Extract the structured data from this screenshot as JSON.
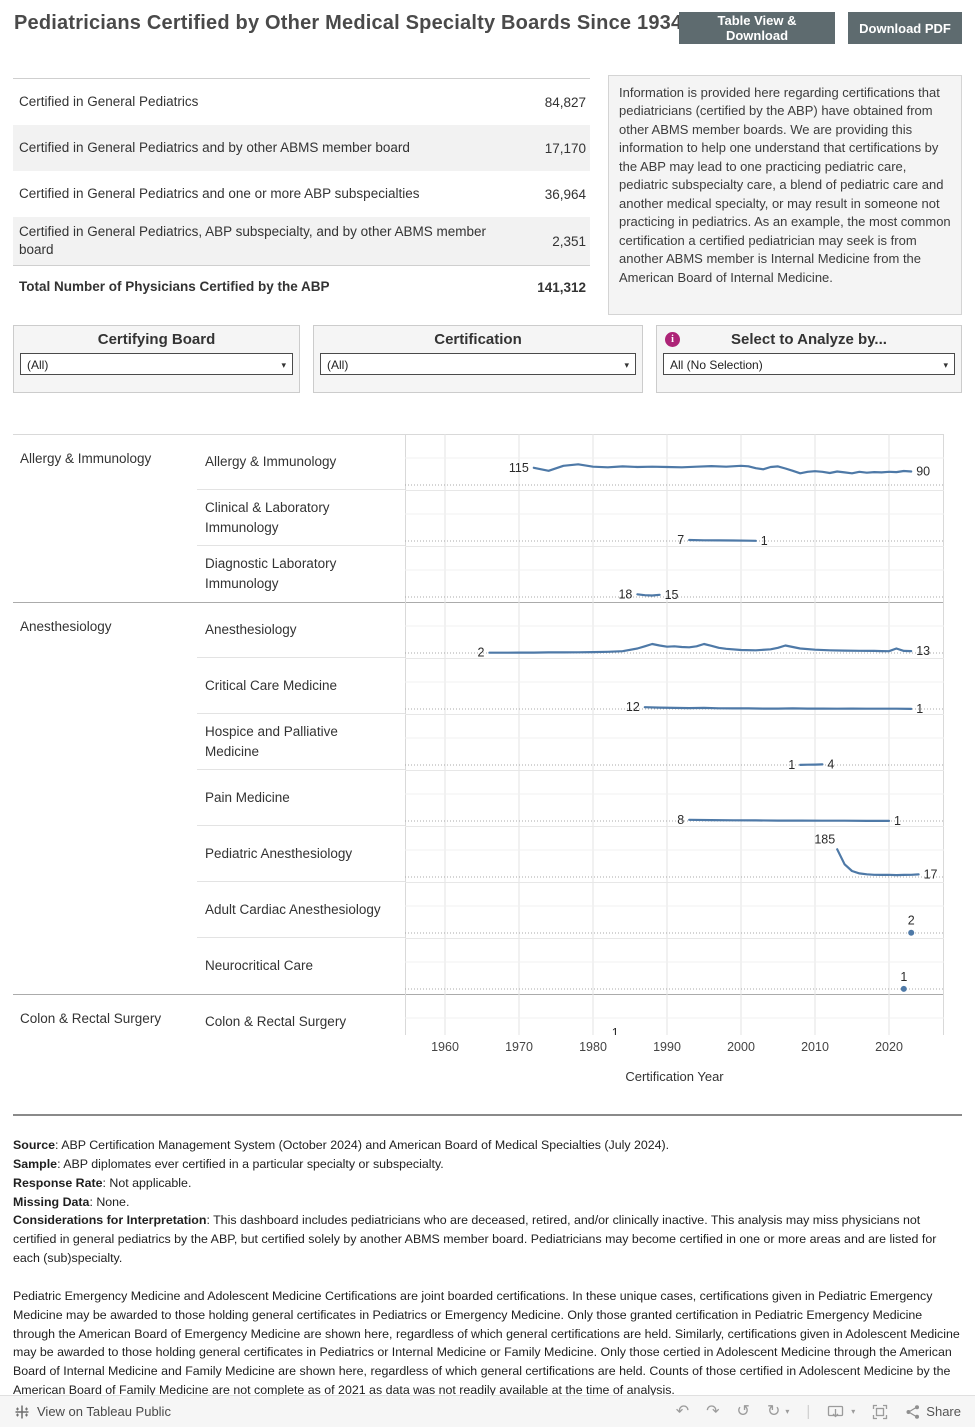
{
  "header": {
    "title": "Pediatricians Certified by Other Medical Specialty Boards Since 1934",
    "table_view_button": "Table View & Download",
    "download_pdf_button": "Download PDF"
  },
  "summary_table": {
    "rows": [
      {
        "label": "Certified in General Pediatrics",
        "value": "84,827",
        "bold": false
      },
      {
        "label": "Certified in General Pediatrics and by other ABMS member board",
        "value": "17,170",
        "bold": false
      },
      {
        "label": "Certified in General Pediatrics and one or more ABP subspecialties",
        "value": "36,964",
        "bold": false
      },
      {
        "label": "Certified in General Pediatrics, ABP subspecialty, and by other ABMS member board",
        "value": "2,351",
        "bold": false
      },
      {
        "label": "Total Number of Physicians Certified by the ABP",
        "value": "141,312",
        "bold": true
      }
    ]
  },
  "info_box": {
    "text": "Information is provided here regarding certifications that pediatricians (certified by the ABP) have obtained from other ABMS member boards.  We are providing this information to help one understand that certifications by the ABP may lead to one practicing pediatric care, pediatric subspecialty care, a blend of pediatric care and another medical specialty, or may result in someone not practicing in pediatrics.  As an example, the most common certification a certified pediatrician may seek is from another ABMS member is Internal Medicine from the American Board of Internal Medicine."
  },
  "filters": [
    {
      "title": "Certifying Board",
      "value": "(All)",
      "info_icon": false
    },
    {
      "title": "Certification",
      "value": "(All)",
      "info_icon": false
    },
    {
      "title": "Select to Analyze by...",
      "value": "All (No Selection)",
      "info_icon": true
    }
  ],
  "accent_colors": {
    "line_blue": "#4e79a7",
    "button_gray": "#5e6b6f",
    "info_icon_magenta": "#ad2477"
  },
  "chart_data": {
    "type": "line",
    "xlabel": "Certification Year",
    "x_ticks": [
      1960,
      1970,
      1980,
      1990,
      2000,
      2010,
      2020
    ],
    "xlim": [
      1955,
      2027
    ],
    "groups": [
      {
        "board": "Allergy & Immunology",
        "rows": [
          {
            "specialty": "Allergy & Immunology",
            "first_label": "115",
            "last_label": "90",
            "years": [
              1972,
              1973,
              1974,
              1976,
              1978,
              1980,
              1982,
              1984,
              1986,
              1988,
              1990,
              1992,
              1994,
              1996,
              1998,
              2000,
              2001,
              2002,
              2003,
              2004,
              2005,
              2006,
              2007,
              2008,
              2009,
              2010,
              2011,
              2012,
              2013,
              2014,
              2015,
              2016,
              2017,
              2018,
              2019,
              2020,
              2021,
              2022,
              2023
            ],
            "values": [
              115,
              105,
              95,
              128,
              138,
              122,
              118,
              124,
              120,
              122,
              120,
              118,
              122,
              126,
              122,
              128,
              125,
              112,
              105,
              120,
              124,
              110,
              95,
              78,
              88,
              92,
              88,
              80,
              90,
              84,
              78,
              88,
              82,
              86,
              84,
              88,
              86,
              93,
              90
            ]
          },
          {
            "specialty": "Clinical & Laboratory Immunology",
            "first_label": "7",
            "last_label": "1",
            "years": [
              1993,
              1995,
              1997,
              1999,
              2001,
              2002
            ],
            "values": [
              7,
              5,
              4,
              3,
              2,
              1
            ]
          },
          {
            "specialty": "Diagnostic Laboratory Immunology",
            "first_label": "18",
            "last_label": "15",
            "years": [
              1986,
              1987,
              1988,
              1989
            ],
            "values": [
              18,
              12,
              10,
              15
            ]
          }
        ]
      },
      {
        "board": "Anesthesiology",
        "rows": [
          {
            "specialty": "Anesthesiology",
            "first_label": "2",
            "last_label": "13",
            "years": [
              1966,
              1968,
              1970,
              1972,
              1974,
              1976,
              1978,
              1980,
              1982,
              1984,
              1986,
              1987,
              1988,
              1989,
              1990,
              1991,
              1992,
              1993,
              1994,
              1995,
              1996,
              1997,
              1998,
              2000,
              2002,
              2004,
              2005,
              2006,
              2007,
              2008,
              2010,
              2012,
              2014,
              2016,
              2018,
              2019,
              2020,
              2021,
              2022,
              2023
            ],
            "values": [
              2,
              2,
              3,
              3,
              4,
              4,
              5,
              6,
              8,
              12,
              30,
              45,
              60,
              50,
              42,
              45,
              40,
              38,
              45,
              60,
              48,
              35,
              28,
              20,
              18,
              25,
              35,
              50,
              40,
              30,
              22,
              18,
              16,
              15,
              14,
              13,
              12,
              30,
              14,
              13
            ]
          },
          {
            "specialty": "Critical Care Medicine",
            "first_label": "12",
            "last_label": "1",
            "years": [
              1987,
              1989,
              1991,
              1993,
              1995,
              1997,
              1999,
              2001,
              2003,
              2005,
              2007,
              2009,
              2011,
              2013,
              2015,
              2017,
              2019,
              2021,
              2023
            ],
            "values": [
              12,
              9,
              7,
              6,
              7,
              5,
              4,
              4,
              3,
              3,
              4,
              3,
              3,
              2,
              3,
              2,
              2,
              2,
              1
            ]
          },
          {
            "specialty": "Hospice and Palliative Medicine",
            "first_label": "1",
            "last_label": "4",
            "years": [
              2008,
              2009,
              2010,
              2011
            ],
            "values": [
              1,
              2,
              3,
              4
            ]
          },
          {
            "specialty": "Pain Medicine",
            "first_label": "8",
            "last_label": "1",
            "years": [
              1993,
              1996,
              1999,
              2002,
              2005,
              2008,
              2011,
              2014,
              2017,
              2020
            ],
            "values": [
              8,
              6,
              5,
              4,
              3,
              3,
              2,
              2,
              1,
              1
            ]
          },
          {
            "specialty": "Pediatric Anesthesiology",
            "first_label": "185",
            "last_label": "17",
            "label_above_start": true,
            "years": [
              2013,
              2014,
              2015,
              2016,
              2017,
              2018,
              2019,
              2020,
              2021,
              2022,
              2023,
              2024
            ],
            "values": [
              185,
              85,
              40,
              24,
              18,
              15,
              14,
              15,
              13,
              14,
              15,
              17
            ]
          },
          {
            "specialty": "Adult Cardiac Anesthesiology",
            "point": {
              "year": 2023,
              "value": 2,
              "label": "2"
            }
          },
          {
            "specialty": "Neurocritical Care",
            "point": {
              "year": 2022,
              "value": 1,
              "label": "1"
            }
          }
        ]
      },
      {
        "board": "Colon & Rectal Surgery",
        "rows": [
          {
            "specialty": "Colon & Rectal Surgery",
            "point": {
              "year": 1983,
              "value": 1,
              "label": "1"
            },
            "clipped": true
          }
        ]
      }
    ]
  },
  "footer": {
    "notes": [
      {
        "label": "Source",
        "text": ": ABP Certification Management System (October 2024) and American Board of Medical Specialties (July 2024)."
      },
      {
        "label": "Sample",
        "text": ": ABP diplomates ever certified in a particular specialty or subspecialty."
      },
      {
        "label": "Response Rate",
        "text": ": Not applicable."
      },
      {
        "label": "Missing Data",
        "text": ": None."
      },
      {
        "label": "Considerations for Interpretation",
        "text": ": This dashboard includes pediatricians who are deceased, retired, and/or clinically inactive. This analysis may miss physicians not certified in general pediatrics by the ABP, but certified solely by another ABMS member board. Pediatricians may become certified in one or more areas and are listed for each (sub)specialty."
      }
    ],
    "paragraph": "Pediatric Emergency Medicine and Adolescent Medicine Certifications are joint boarded certifications. In these unique cases, certifications given in Pediatric Emergency Medicine may be awarded to those holding general certificates in Pediatrics or Emergency Medicine. Only those granted certification in Pediatric Emergency Medicine through the American Board of Emergency Medicine are shown here, regardless of which general certifications are held. Similarly, certifications given in Adolescent Medicine may be awarded to those holding general certificates in Pediatrics or Internal Medicine or Family Medicine. Only those certied in Adolescent Medicine through the American Board of Internal Medicine and Family Medicine are shown here, regardless of which general certifications are held.  Counts of those certified in Adolescent Medicine by the American Board of Family Medicine are not complete as of 2021 as data was not readily available at the time of analysis."
  },
  "toolbar": {
    "view_label": "View on Tableau Public",
    "share_label": "Share"
  }
}
